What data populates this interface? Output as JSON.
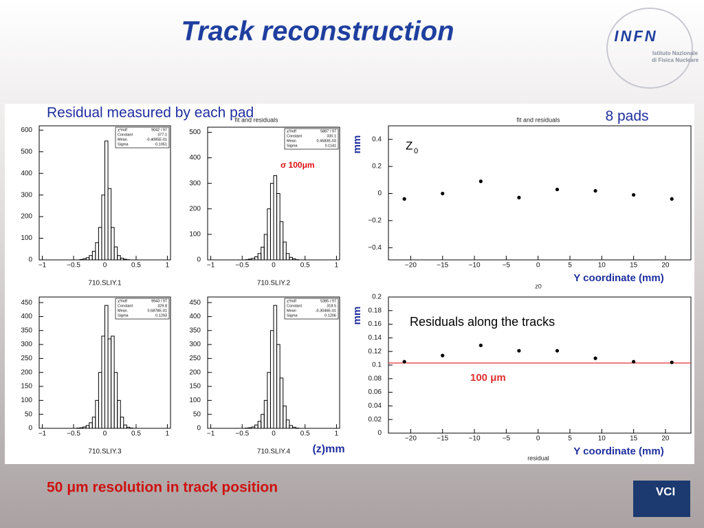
{
  "title": "Track reconstruction",
  "annotations": {
    "left_heading": "Residual measured by each pad",
    "pads": "8 pads",
    "sigma": "σ  100μm",
    "fit_label": "fit and residuals",
    "z_unit": "(z)mm",
    "conclusion": "50 μm resolution in track position"
  },
  "logos": {
    "infn": "INFN",
    "infn_name_1": "Istituto Nazionale",
    "infn_name_2": "di Fisica Nucleare",
    "vci": "VCI"
  },
  "chart_data": [
    {
      "type": "histogram",
      "label": "710.SLIY.1",
      "color": "#000000",
      "bins": [
        -0.5,
        -0.45,
        -0.4,
        -0.35,
        -0.3,
        -0.25,
        -0.2,
        -0.15,
        -0.1,
        -0.05,
        0,
        0.05,
        0.1,
        0.15,
        0.2,
        0.25,
        0.3,
        0.35,
        0.4,
        0.45,
        0.5
      ],
      "counts": [
        0,
        0,
        2,
        5,
        10,
        20,
        40,
        80,
        150,
        300,
        550,
        330,
        150,
        60,
        20,
        8,
        3,
        1,
        0,
        0
      ],
      "xlim": [
        -1.05,
        1.05
      ],
      "xticks": [
        {
          "value": -1,
          "label": "−1"
        },
        {
          "value": -0.5,
          "label": "−0.5"
        },
        0,
        0.5,
        1
      ],
      "ylim": [
        0,
        620
      ],
      "yticks": [
        0,
        100,
        200,
        300,
        400,
        500,
        600
      ],
      "stats": [
        [
          "χ²/ndf",
          "9042  /  97"
        ],
        [
          "Constant",
          "377.1"
        ],
        [
          "Mean",
          "-0.4085E-01"
        ],
        [
          "Sigma",
          "0.1051"
        ]
      ]
    },
    {
      "type": "histogram",
      "label": "710.SLIY.2",
      "color": "#000000",
      "bins": [
        -0.5,
        -0.45,
        -0.4,
        -0.35,
        -0.3,
        -0.25,
        -0.2,
        -0.15,
        -0.1,
        -0.05,
        0,
        0.05,
        0.1,
        0.15,
        0.2,
        0.25,
        0.3,
        0.35,
        0.4,
        0.45,
        0.5
      ],
      "counts": [
        0,
        1,
        3,
        6,
        12,
        25,
        50,
        100,
        200,
        300,
        330,
        260,
        150,
        70,
        25,
        10,
        4,
        1,
        0,
        0
      ],
      "xlim": [
        -1.05,
        1.05
      ],
      "xticks": [
        {
          "value": -1,
          "label": "−1"
        },
        {
          "value": -0.5,
          "label": "−0.5"
        },
        0,
        0.5,
        1
      ],
      "ylim": [
        0,
        520
      ],
      "yticks": [
        0,
        100,
        200,
        300,
        400,
        500
      ],
      "stats": [
        [
          "χ²/ndf",
          "5887  /  97"
        ],
        [
          "Constant",
          "330.1"
        ],
        [
          "Mean",
          "0.4583E-03"
        ],
        [
          "Sigma",
          "0.1141"
        ]
      ]
    },
    {
      "type": "histogram",
      "label": "710.SLIY.3",
      "color": "#000000",
      "bins": [
        -0.5,
        -0.45,
        -0.4,
        -0.35,
        -0.3,
        -0.25,
        -0.2,
        -0.15,
        -0.1,
        -0.05,
        0,
        0.05,
        0.1,
        0.15,
        0.2,
        0.25,
        0.3,
        0.35,
        0.4,
        0.45,
        0.5
      ],
      "counts": [
        0,
        1,
        2,
        5,
        10,
        20,
        40,
        100,
        200,
        330,
        440,
        320,
        330,
        200,
        100,
        40,
        12,
        4,
        1,
        0
      ],
      "xlim": [
        -1.05,
        1.05
      ],
      "xticks": [
        {
          "value": -1,
          "label": "−1"
        },
        {
          "value": -0.5,
          "label": "−0.5"
        },
        0,
        0.5,
        1
      ],
      "ylim": [
        0,
        470
      ],
      "yticks": [
        0,
        50,
        100,
        150,
        200,
        250,
        300,
        350,
        400,
        450
      ],
      "stats": [
        [
          "χ²/ndf",
          "9943  /  97"
        ],
        [
          "Constant",
          "329.8"
        ],
        [
          "Mean",
          "0.6878E-01"
        ],
        [
          "Sigma",
          "0.1293"
        ]
      ]
    },
    {
      "type": "histogram",
      "label": "710.SLIY.4",
      "color": "#000000",
      "bins": [
        -0.5,
        -0.45,
        -0.4,
        -0.35,
        -0.3,
        -0.25,
        -0.2,
        -0.15,
        -0.1,
        -0.05,
        0,
        0.05,
        0.1,
        0.15,
        0.2,
        0.25,
        0.3,
        0.35,
        0.4,
        0.45,
        0.5
      ],
      "counts": [
        0,
        1,
        2,
        5,
        12,
        25,
        50,
        100,
        200,
        350,
        440,
        300,
        180,
        80,
        30,
        10,
        4,
        1,
        0,
        0
      ],
      "xlim": [
        -1.05,
        1.05
      ],
      "xticks": [
        {
          "value": -1,
          "label": "−1"
        },
        {
          "value": -0.5,
          "label": "−0.5"
        },
        0,
        0.5,
        1
      ],
      "ylim": [
        0,
        470
      ],
      "yticks": [
        0,
        50,
        100,
        150,
        200,
        250,
        300,
        350,
        400,
        450
      ],
      "stats": [
        [
          "χ²/ndf",
          "5385  /  97"
        ],
        [
          "Constant",
          "318.5"
        ],
        [
          "Mean",
          "-0.3046E-01"
        ],
        [
          "Sigma",
          "0.1206"
        ]
      ]
    },
    {
      "type": "scatter",
      "title": "fit and residuals",
      "x_label": "Y coordinate (mm)",
      "y_label": "mm",
      "axis_name": "z0",
      "annotation": {
        "base": "Z",
        "sub": "0"
      },
      "color": "#000000",
      "x": [
        -21,
        -15,
        -9,
        -3,
        3,
        9,
        15,
        21
      ],
      "y": [
        -0.04,
        0.0,
        0.09,
        -0.03,
        0.03,
        0.02,
        -0.01,
        -0.04
      ],
      "xlim": [
        -23.5,
        24
      ],
      "xticks": [
        {
          "value": -20,
          "label": "−20"
        },
        {
          "value": -15,
          "label": "−15"
        },
        {
          "value": -10,
          "label": "−10"
        },
        {
          "value": -5,
          "label": "−5"
        },
        0,
        5,
        10,
        15,
        20
      ],
      "ylim": [
        -0.49,
        0.5
      ],
      "yticks": [
        {
          "value": -0.4,
          "label": "−0.4"
        },
        {
          "value": -0.2,
          "label": "−0.2"
        },
        0,
        0.2,
        0.4
      ]
    },
    {
      "type": "scatter",
      "x_label": "Y coordinate (mm)",
      "y_label": "mm",
      "axis_name": "residual",
      "annotation": {
        "text": "Residuals along the tracks"
      },
      "color": "#000000",
      "x": [
        -21,
        -15,
        -9,
        -3,
        3,
        9,
        15,
        21
      ],
      "y": [
        0.105,
        0.114,
        0.129,
        0.121,
        0.121,
        0.11,
        0.105,
        0.104
      ],
      "reference_line": {
        "value": 0.103,
        "label": "100 μm",
        "color": "#e03030"
      },
      "xlim": [
        -23.5,
        24
      ],
      "xticks": [
        {
          "value": -20,
          "label": "−20"
        },
        {
          "value": -15,
          "label": "−15"
        },
        {
          "value": -10,
          "label": "−10"
        },
        {
          "value": -5,
          "label": "−5"
        },
        0,
        5,
        10,
        15,
        20
      ],
      "ylim": [
        0,
        0.2
      ],
      "yticks": [
        0,
        0.02,
        0.04,
        0.06,
        0.08,
        0.1,
        0.12,
        0.14,
        0.16,
        0.18,
        0.2
      ]
    }
  ]
}
